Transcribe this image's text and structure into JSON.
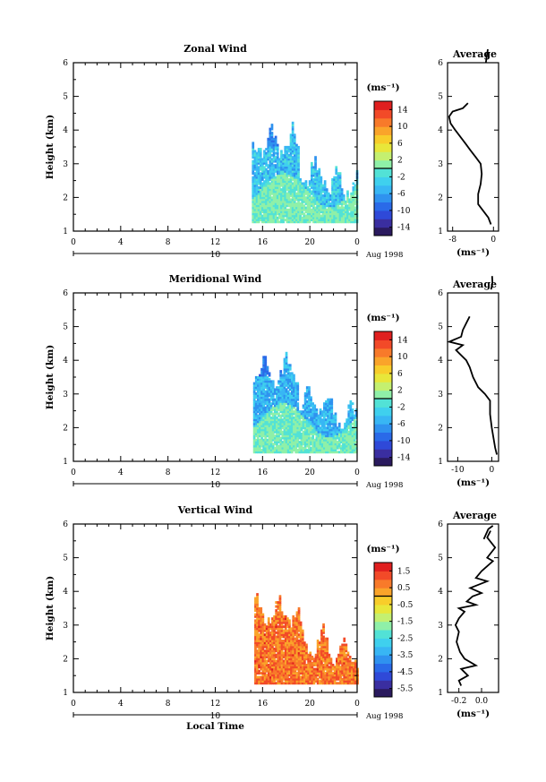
{
  "chart_data": [
    {
      "type": "heatmap",
      "title": "Zonal Wind",
      "xlabel": "",
      "ylabel": "Height (km)",
      "xticks": [
        "0",
        "4",
        "8",
        "12",
        "16",
        "20",
        "0"
      ],
      "yticks": [
        "1",
        "2",
        "3",
        "4",
        "5",
        "6"
      ],
      "xlim": [
        0,
        24
      ],
      "ylim": [
        1,
        6
      ],
      "date_axis": {
        "day_label": "10",
        "month_label": "Aug 1998"
      },
      "colorbar": {
        "unit_label": "(ms⁻¹)",
        "ticks": [
          "14",
          "10",
          "6",
          "2",
          "-2",
          "-6",
          "-10",
          "-14"
        ],
        "range": [
          -16,
          16
        ]
      },
      "data_extent": {
        "x": [
          15.1,
          24.0
        ],
        "y": [
          1.25,
          4.35
        ]
      },
      "dominant_value": -4,
      "lower_region_value": 0,
      "profile": {
        "title": "Average",
        "xlabel": "(ms⁻¹)",
        "xticks": [
          "-8",
          "0"
        ],
        "xlim": [
          -9,
          1
        ],
        "yticks": [
          "1",
          "2",
          "3",
          "4",
          "5",
          "6"
        ],
        "ylim": [
          1,
          6
        ],
        "points": [
          [
            -0.5,
            1.2
          ],
          [
            -1,
            1.4
          ],
          [
            -2,
            1.6
          ],
          [
            -3,
            1.8
          ],
          [
            -3,
            2.1
          ],
          [
            -2.5,
            2.4
          ],
          [
            -2.3,
            2.7
          ],
          [
            -2.5,
            3.0
          ],
          [
            -3.5,
            3.2
          ],
          [
            -4.5,
            3.4
          ],
          [
            -5.5,
            3.6
          ],
          [
            -6.5,
            3.8
          ],
          [
            -7.5,
            4.0
          ],
          [
            -8.4,
            4.2
          ],
          [
            -8.7,
            4.4
          ],
          [
            -8.0,
            4.55
          ],
          [
            -6,
            4.65
          ],
          [
            -5,
            4.8
          ]
        ],
        "segment2": [
          [
            -1.5,
            6.0
          ],
          [
            -1.3,
            6.2
          ],
          [
            -1.1,
            6.4
          ]
        ]
      }
    },
    {
      "type": "heatmap",
      "title": "Meridional Wind",
      "xlabel": "",
      "ylabel": "Height (km)",
      "xticks": [
        "0",
        "4",
        "8",
        "12",
        "16",
        "20",
        "0"
      ],
      "yticks": [
        "1",
        "2",
        "3",
        "4",
        "5",
        "6"
      ],
      "xlim": [
        0,
        24
      ],
      "ylim": [
        1,
        6
      ],
      "date_axis": {
        "day_label": "10",
        "month_label": "Aug 1998"
      },
      "colorbar": {
        "unit_label": "(ms⁻¹)",
        "ticks": [
          "14",
          "10",
          "6",
          "2",
          "-2",
          "-6",
          "-10",
          "-14"
        ],
        "range": [
          -16,
          16
        ]
      },
      "data_extent": {
        "x": [
          15.2,
          24.0
        ],
        "y": [
          1.25,
          4.35
        ]
      },
      "dominant_value": -5,
      "lower_region_value": 0,
      "profile": {
        "title": "Average",
        "xlabel": "(ms⁻¹)",
        "xticks": [
          "-10",
          "0"
        ],
        "xlim": [
          -13,
          2
        ],
        "yticks": [
          "1",
          "2",
          "3",
          "4",
          "5",
          "6"
        ],
        "ylim": [
          1,
          6
        ],
        "points": [
          [
            1.5,
            1.2
          ],
          [
            1,
            1.4
          ],
          [
            0.5,
            1.7
          ],
          [
            0,
            2.0
          ],
          [
            -0.5,
            2.4
          ],
          [
            -0.5,
            2.8
          ],
          [
            -2,
            3.0
          ],
          [
            -4,
            3.2
          ],
          [
            -5.5,
            3.5
          ],
          [
            -6.5,
            3.8
          ],
          [
            -7.5,
            4.0
          ],
          [
            -9.5,
            4.2
          ],
          [
            -10.5,
            4.3
          ],
          [
            -8.5,
            4.45
          ],
          [
            -12.5,
            4.55
          ],
          [
            -9,
            4.7
          ],
          [
            -8.5,
            4.9
          ],
          [
            -7.5,
            5.1
          ],
          [
            -6.5,
            5.3
          ]
        ],
        "segment2": [
          [
            -0.2,
            6.1
          ],
          [
            0.2,
            6.3
          ],
          [
            0.1,
            6.5
          ]
        ]
      }
    },
    {
      "type": "heatmap",
      "title": "Vertical Wind",
      "xlabel": "Local Time",
      "ylabel": "Height (km)",
      "xticks": [
        "0",
        "4",
        "8",
        "12",
        "16",
        "20",
        "0"
      ],
      "yticks": [
        "1",
        "2",
        "3",
        "4",
        "5",
        "6"
      ],
      "xlim": [
        0,
        24
      ],
      "ylim": [
        1,
        6
      ],
      "date_axis": {
        "day_label": "10",
        "month_label": "Aug 1998"
      },
      "colorbar": {
        "unit_label": "(ms⁻¹)",
        "ticks": [
          "1.5",
          "0.5",
          "-0.5",
          "-1.5",
          "-2.5",
          "-3.5",
          "-4.5",
          "-5.5"
        ],
        "range": [
          -6,
          2
        ]
      },
      "data_extent": {
        "x": [
          15.3,
          24.0
        ],
        "y": [
          1.25,
          4.1
        ]
      },
      "dominant_value": 0.8,
      "lower_region_value": 0.8,
      "profile": {
        "title": "Average",
        "xlabel": "(ms⁻¹)",
        "xticks": [
          "-0.2",
          "0.0"
        ],
        "xlim": [
          -0.3,
          0.15
        ],
        "yticks": [
          "1",
          "2",
          "3",
          "4",
          "5",
          "6"
        ],
        "ylim": [
          1,
          6
        ],
        "points": [
          [
            -0.18,
            1.2
          ],
          [
            -0.2,
            1.35
          ],
          [
            -0.12,
            1.5
          ],
          [
            -0.18,
            1.7
          ],
          [
            -0.05,
            1.8
          ],
          [
            -0.15,
            2.0
          ],
          [
            -0.19,
            2.2
          ],
          [
            -0.22,
            2.5
          ],
          [
            -0.2,
            2.8
          ],
          [
            -0.23,
            3.0
          ],
          [
            -0.2,
            3.2
          ],
          [
            -0.15,
            3.4
          ],
          [
            -0.2,
            3.5
          ],
          [
            -0.05,
            3.6
          ],
          [
            -0.13,
            3.7
          ],
          [
            -0.08,
            3.85
          ],
          [
            0.0,
            3.95
          ],
          [
            -0.1,
            4.1
          ],
          [
            0.05,
            4.3
          ],
          [
            -0.05,
            4.4
          ],
          [
            0.0,
            4.6
          ],
          [
            0.1,
            4.9
          ],
          [
            0.05,
            5.0
          ],
          [
            0.12,
            5.3
          ],
          [
            0.05,
            5.6
          ],
          [
            0.08,
            5.8
          ]
        ],
        "segment2": [
          [
            0.02,
            5.55
          ],
          [
            0.06,
            5.85
          ],
          [
            0.1,
            5.95
          ]
        ]
      }
    }
  ]
}
